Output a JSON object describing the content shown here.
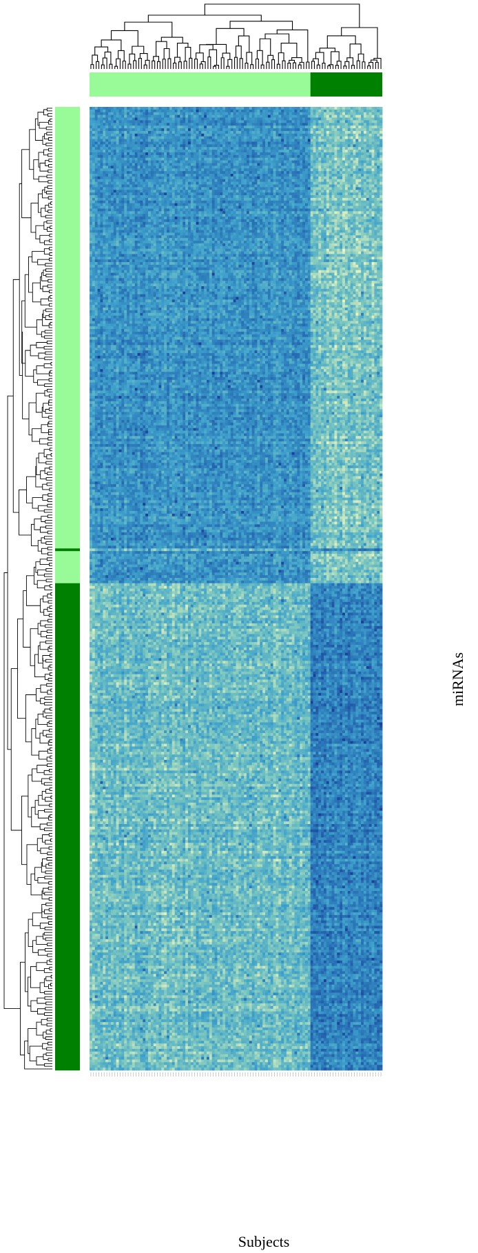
{
  "chart_data": {
    "type": "heatmap",
    "title": "",
    "xlabel": "Subjects",
    "ylabel": "miRNAs",
    "n_columns": 110,
    "n_rows": 360,
    "column_groups": [
      {
        "color": "#98fb98",
        "count": 83
      },
      {
        "color": "#008000",
        "count": 27
      }
    ],
    "row_groups": [
      {
        "color": "#98fb98",
        "count": 165
      },
      {
        "color": "#008000",
        "count": 1
      },
      {
        "color": "#98fb98",
        "count": 12
      },
      {
        "color": "#008000",
        "count": 182
      }
    ],
    "color_scale": [
      "#f0f6c0",
      "#7cc7bf",
      "#40a2cc",
      "#2a76b8",
      "#1c3f98"
    ],
    "value_range": [
      0,
      1
    ],
    "grid": false,
    "legend": "none"
  }
}
